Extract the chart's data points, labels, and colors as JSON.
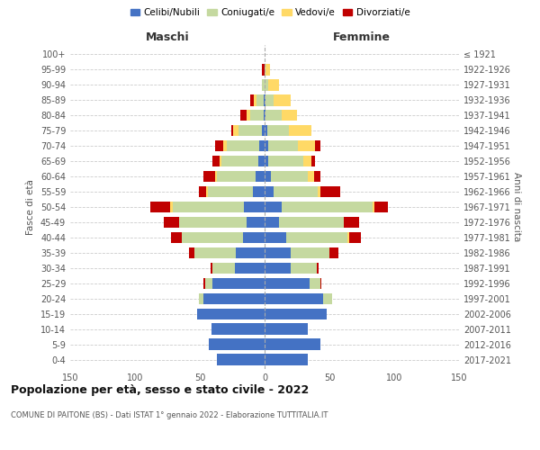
{
  "age_groups": [
    "0-4",
    "5-9",
    "10-14",
    "15-19",
    "20-24",
    "25-29",
    "30-34",
    "35-39",
    "40-44",
    "45-49",
    "50-54",
    "55-59",
    "60-64",
    "65-69",
    "70-74",
    "75-79",
    "80-84",
    "85-89",
    "90-94",
    "95-99",
    "100+"
  ],
  "birth_years": [
    "2017-2021",
    "2012-2016",
    "2007-2011",
    "2002-2006",
    "1997-2001",
    "1992-1996",
    "1987-1991",
    "1982-1986",
    "1977-1981",
    "1972-1976",
    "1967-1971",
    "1962-1966",
    "1957-1961",
    "1952-1956",
    "1947-1951",
    "1942-1946",
    "1937-1941",
    "1932-1936",
    "1927-1931",
    "1922-1926",
    "≤ 1921"
  ],
  "males": {
    "celibi": [
      37,
      43,
      41,
      52,
      47,
      40,
      23,
      22,
      17,
      14,
      16,
      9,
      7,
      5,
      4,
      2,
      1,
      1,
      0,
      0,
      0
    ],
    "coniugati": [
      0,
      0,
      0,
      0,
      4,
      6,
      17,
      32,
      47,
      52,
      55,
      35,
      30,
      28,
      25,
      18,
      10,
      5,
      2,
      0,
      0
    ],
    "vedovi": [
      0,
      0,
      0,
      0,
      0,
      0,
      0,
      0,
      0,
      0,
      2,
      1,
      1,
      2,
      3,
      4,
      3,
      2,
      0,
      0,
      0
    ],
    "divorziati": [
      0,
      0,
      0,
      0,
      0,
      1,
      2,
      4,
      8,
      12,
      15,
      6,
      9,
      5,
      6,
      2,
      5,
      3,
      0,
      2,
      0
    ]
  },
  "females": {
    "nubili": [
      33,
      43,
      33,
      48,
      45,
      35,
      20,
      20,
      17,
      11,
      13,
      7,
      5,
      3,
      3,
      2,
      1,
      1,
      0,
      0,
      0
    ],
    "coniugate": [
      0,
      0,
      0,
      0,
      7,
      8,
      20,
      30,
      47,
      50,
      70,
      34,
      28,
      27,
      23,
      17,
      12,
      6,
      3,
      1,
      0
    ],
    "vedove": [
      0,
      0,
      0,
      0,
      0,
      0,
      0,
      0,
      1,
      0,
      2,
      2,
      5,
      6,
      13,
      17,
      12,
      13,
      8,
      3,
      0
    ],
    "divorziate": [
      0,
      0,
      0,
      0,
      0,
      1,
      2,
      7,
      9,
      12,
      10,
      15,
      5,
      3,
      4,
      0,
      0,
      0,
      0,
      0,
      0
    ]
  },
  "colors": {
    "celibi": "#4472C4",
    "coniugati": "#c5d9a0",
    "vedovi": "#FFD966",
    "divorziati": "#C00000"
  },
  "legend_labels": [
    "Celibi/Nubili",
    "Coniugati/e",
    "Vedovi/e",
    "Divorziati/e"
  ],
  "title": "Popolazione per età, sesso e stato civile - 2022",
  "subtitle": "COMUNE DI PAITONE (BS) - Dati ISTAT 1° gennaio 2022 - Elaborazione TUTTITALIA.IT",
  "xlabel_left": "Maschi",
  "xlabel_right": "Femmine",
  "ylabel_left": "Fasce di età",
  "ylabel_right": "Anni di nascita",
  "xlim": 150,
  "bg_color": "#ffffff",
  "grid_color": "#cccccc",
  "bar_height": 0.75
}
